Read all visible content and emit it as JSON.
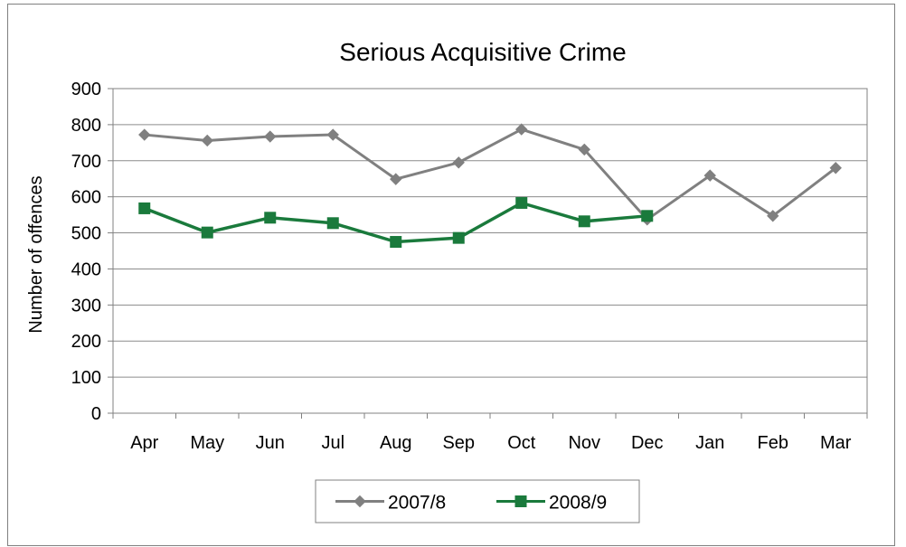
{
  "chart_data": {
    "type": "line",
    "title": "Serious Acquisitive Crime",
    "xlabel": "",
    "ylabel": "Number of offences",
    "ylim": [
      0,
      900
    ],
    "yticks": [
      0,
      100,
      200,
      300,
      400,
      500,
      600,
      700,
      800,
      900
    ],
    "grid": true,
    "legend_position": "bottom",
    "categories": [
      "Apr",
      "May",
      "Jun",
      "Jul",
      "Aug",
      "Sep",
      "Oct",
      "Nov",
      "Dec",
      "Jan",
      "Feb",
      "Mar"
    ],
    "series": [
      {
        "name": "2007/8",
        "color": "#808080",
        "marker": "diamond",
        "values": [
          772,
          756,
          767,
          772,
          649,
          695,
          787,
          731,
          537,
          659,
          547,
          680
        ]
      },
      {
        "name": "2008/9",
        "color": "#1a7a3c",
        "marker": "square",
        "values": [
          568,
          501,
          542,
          527,
          475,
          486,
          583,
          532,
          547,
          null,
          null,
          null
        ]
      }
    ]
  }
}
